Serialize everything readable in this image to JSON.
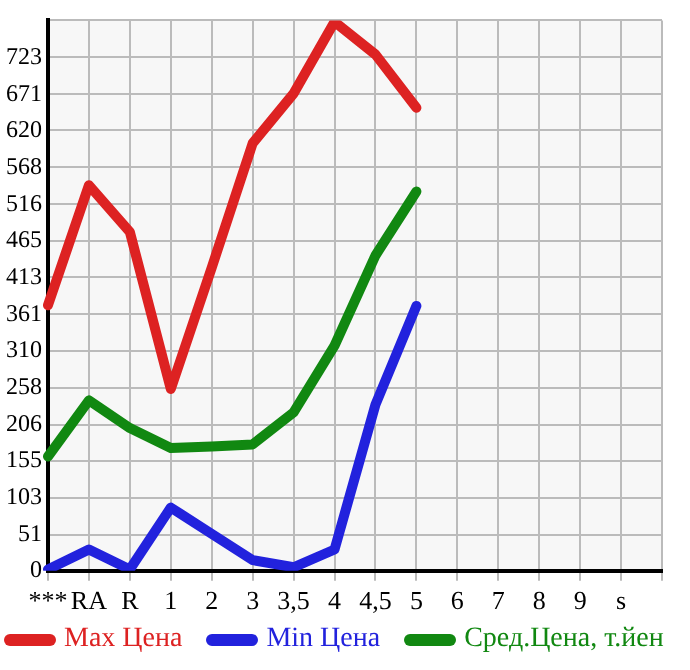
{
  "chart_data": {
    "type": "line",
    "categories": [
      "***",
      "RA",
      "R",
      "1",
      "2",
      "3",
      "3,5",
      "4",
      "4,5",
      "5",
      "6",
      "7",
      "8",
      "9",
      "s",
      null
    ],
    "series": [
      {
        "name": "Max Цена",
        "color": "#dd2222",
        "values": [
          374,
          543,
          477,
          256,
          427,
          602,
          672,
          773,
          727,
          652,
          null,
          null,
          null,
          null,
          null,
          null
        ]
      },
      {
        "name": "Min Цена",
        "color": "#2222dd",
        "values": [
          2,
          30,
          2,
          89,
          52,
          15,
          5,
          30,
          234,
          373,
          null,
          null,
          null,
          null,
          null,
          null
        ]
      },
      {
        "name": "Сред.Цена, т.йен",
        "color": "#118811",
        "values": [
          161,
          240,
          201,
          173,
          175,
          178,
          223,
          317,
          444,
          534,
          null,
          null,
          null,
          null,
          null,
          null
        ]
      }
    ],
    "ylim": [
      0,
      775
    ],
    "yticks": [
      0,
      51,
      103,
      155,
      206,
      258,
      310,
      361,
      413,
      465,
      516,
      568,
      620,
      671,
      723,
      {
        "value": 775,
        "label": null
      }
    ],
    "grid": true,
    "legend": "bottom",
    "marker": "none",
    "line_style": "solid"
  }
}
